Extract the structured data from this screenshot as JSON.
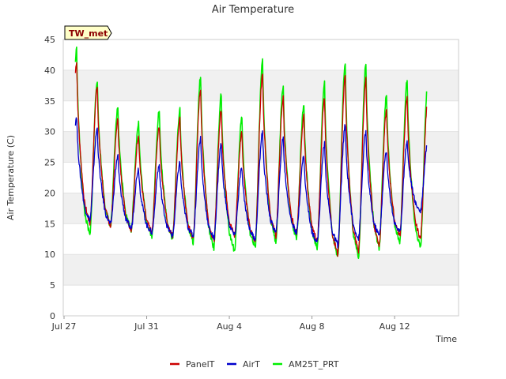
{
  "chart_data": {
    "type": "line",
    "title": "Air Temperature",
    "xlabel": "Time",
    "ylabel": "Air Temperature (C)",
    "site_label": "TW_met",
    "xlim": [
      "2023-07-27",
      "2023-08-15"
    ],
    "ylim": [
      0,
      45
    ],
    "yticks": [
      0,
      5,
      10,
      15,
      20,
      25,
      30,
      35,
      40,
      45
    ],
    "xticks": [
      {
        "label": "Jul 27",
        "day": 0
      },
      {
        "label": "Jul 31",
        "day": 4
      },
      {
        "label": "Aug 4",
        "day": 8
      },
      {
        "label": "Aug 8",
        "day": 12
      },
      {
        "label": "Aug 12",
        "day": 16
      }
    ],
    "legend_position": "bottom",
    "grid": "alternating horizontal bands",
    "series": [
      {
        "name": "PanelT",
        "color": "#cc0000",
        "daily_min": [
          13.2,
          15.0,
          14.5,
          14.0,
          13.5,
          13.0,
          12.5,
          12.0,
          13.0,
          12.0,
          13.0,
          13.5,
          12.0,
          10.0,
          10.5,
          11.5,
          13.0,
          12.5
        ],
        "daily_max": [
          41.5,
          37.5,
          32.0,
          29.5,
          31.0,
          32.0,
          37.0,
          33.5,
          30.0,
          39.5,
          35.5,
          32.5,
          35.5,
          39.0,
          38.5,
          33.5,
          35.5
        ]
      },
      {
        "name": "AirT",
        "color": "#0000cc",
        "daily_min": [
          16.8,
          15.5,
          14.8,
          14.2,
          13.5,
          13.0,
          13.0,
          12.5,
          13.0,
          12.5,
          13.5,
          13.5,
          12.0,
          11.5,
          12.5,
          13.0,
          13.5,
          17.0
        ],
        "daily_max": [
          32.5,
          30.5,
          26.0,
          24.0,
          24.5,
          25.0,
          29.0,
          28.0,
          24.0,
          30.0,
          29.0,
          26.0,
          28.0,
          31.0,
          30.0,
          27.0,
          28.5
        ]
      },
      {
        "name": "AM25T_PRT",
        "color": "#00ee00",
        "daily_min": [
          12.0,
          13.0,
          14.5,
          14.0,
          13.0,
          12.5,
          12.0,
          11.0,
          10.5,
          11.0,
          12.0,
          12.5,
          11.0,
          9.5,
          9.5,
          11.0,
          12.0,
          11.0
        ],
        "daily_max": [
          43.5,
          38.5,
          34.0,
          31.5,
          33.5,
          33.5,
          39.0,
          36.0,
          32.5,
          41.5,
          37.5,
          34.5,
          38.0,
          41.5,
          41.0,
          36.0,
          38.5
        ]
      }
    ]
  }
}
